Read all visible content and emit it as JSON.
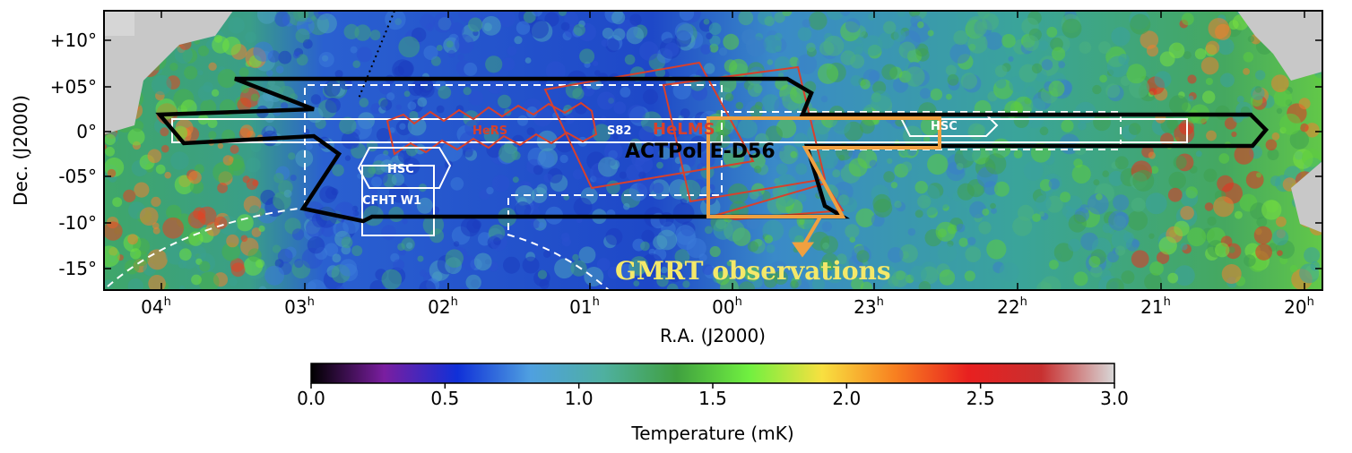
{
  "map": {
    "xlabel": "R.A. (J2000)",
    "ylabel": "Dec. (J2000)",
    "ra_ticks": [
      {
        "label": "04",
        "unit": "h"
      },
      {
        "label": "03",
        "unit": "h"
      },
      {
        "label": "02",
        "unit": "h"
      },
      {
        "label": "01",
        "unit": "h"
      },
      {
        "label": "00",
        "unit": "h"
      },
      {
        "label": "23",
        "unit": "h"
      },
      {
        "label": "22",
        "unit": "h"
      },
      {
        "label": "21",
        "unit": "h"
      },
      {
        "label": "20",
        "unit": "h"
      }
    ],
    "dec_ticks": [
      "+10°",
      "+05°",
      "0°",
      "-05°",
      "-10°",
      "-15°"
    ],
    "regions": {
      "actpol": "ACTPol E-D56",
      "s82": "S82",
      "helms": "HeLMS",
      "hers": "HeRS",
      "hsc_left": "HSC",
      "hsc_right": "HSC",
      "cfht": "CFHT W1",
      "gmrt": "GMRT observations"
    },
    "colors": {
      "actpol": "#000000",
      "survey_outline": "#ffffff",
      "herschel": "#d8402c",
      "gmrt": "#f0a040",
      "gmrt_label": "#f4e86a",
      "masked": "#c8c8c8"
    }
  },
  "colorbar": {
    "label": "Temperature (mK)",
    "ticks": [
      "0.0",
      "0.5",
      "1.0",
      "1.5",
      "2.0",
      "2.5",
      "3.0"
    ],
    "range": [
      0.0,
      3.0
    ],
    "stops": [
      "#000000",
      "#7a1ea0",
      "#1030d8",
      "#4fa0e0",
      "#4fb0a0",
      "#40a040",
      "#70f040",
      "#f8e040",
      "#f88020",
      "#e82020",
      "#c83030",
      "#d8d8d8"
    ]
  }
}
